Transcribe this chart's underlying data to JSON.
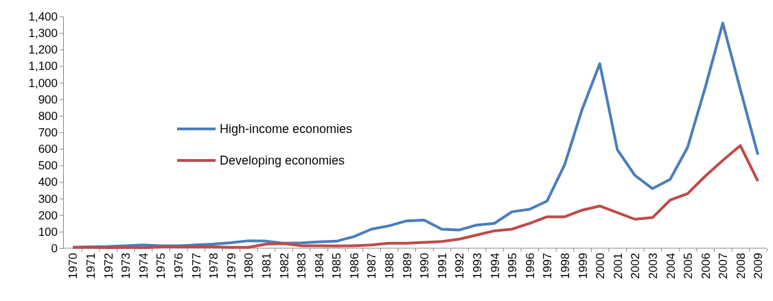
{
  "chart_data": {
    "type": "line",
    "categories": [
      "1970",
      "1971",
      "1972",
      "1973",
      "1974",
      "1975",
      "1976",
      "1977",
      "1978",
      "1979",
      "1980",
      "1981",
      "1982",
      "1983",
      "1984",
      "1985",
      "1986",
      "1987",
      "1988",
      "1989",
      "1990",
      "1991",
      "1992",
      "1993",
      "1994",
      "1995",
      "1996",
      "1997",
      "1998",
      "1999",
      "2000",
      "2001",
      "2002",
      "2003",
      "2004",
      "2005",
      "2006",
      "2007",
      "2008",
      "2009"
    ],
    "series": [
      {
        "name": "High-income economies",
        "color": "#4a7ebb",
        "values": [
          5,
          8,
          10,
          15,
          20,
          15,
          15,
          20,
          25,
          33,
          45,
          43,
          30,
          32,
          38,
          42,
          70,
          115,
          135,
          165,
          170,
          115,
          110,
          140,
          150,
          220,
          235,
          285,
          505,
          840,
          1115,
          595,
          440,
          360,
          415,
          610,
          970,
          1360,
          960,
          565
        ]
      },
      {
        "name": "Developing economies",
        "color": "#be4b48",
        "values": [
          5,
          5,
          3,
          5,
          3,
          8,
          8,
          8,
          8,
          5,
          5,
          25,
          28,
          15,
          15,
          13,
          15,
          20,
          30,
          30,
          35,
          40,
          55,
          80,
          105,
          115,
          150,
          190,
          190,
          230,
          255,
          215,
          175,
          185,
          290,
          330,
          435,
          530,
          620,
          405
        ]
      }
    ],
    "ylim": [
      0,
      1400
    ],
    "yticks": [
      0,
      100,
      200,
      300,
      400,
      500,
      600,
      700,
      800,
      900,
      {
        "value": 1000,
        "label": "1,000"
      },
      {
        "value": 1100,
        "label": "1,100"
      },
      {
        "value": 1200,
        "label": "1,200"
      },
      {
        "value": 1300,
        "label": "1,300"
      },
      {
        "value": 1400,
        "label": "1,400"
      }
    ],
    "legend": "center left",
    "grid": false,
    "marker": "none",
    "line_style": "solid"
  }
}
